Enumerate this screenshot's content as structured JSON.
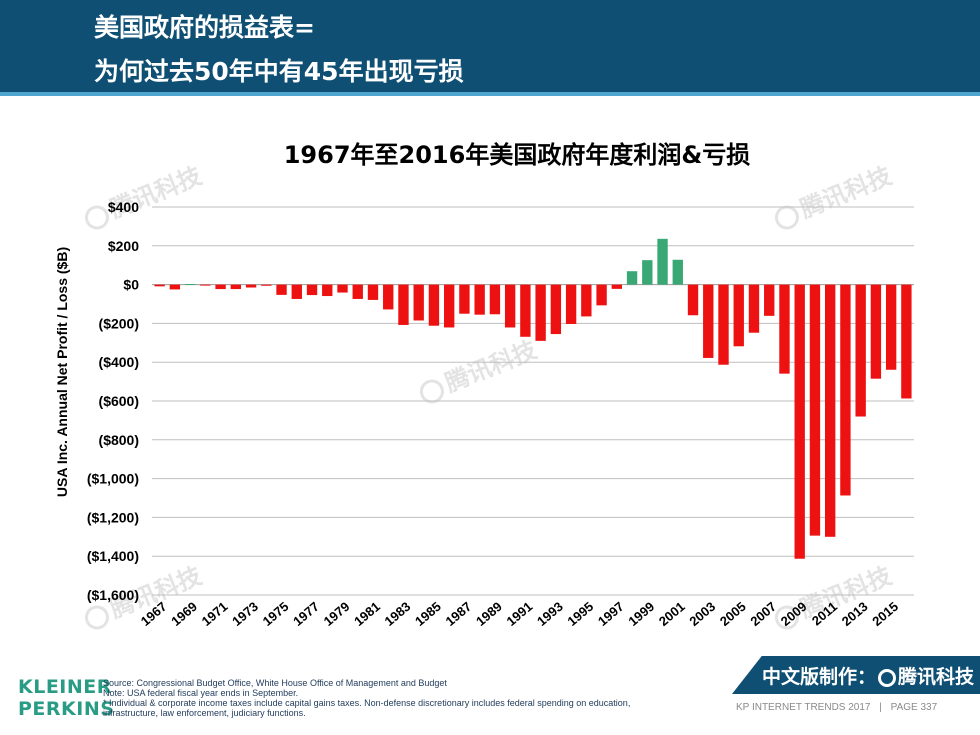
{
  "header": {
    "title_line1": "美国政府的损益表=",
    "title_line2": "为何过去50年中有45年出现亏损"
  },
  "colors": {
    "header_bg": "#0f4f74",
    "positive": "#3aa874",
    "negative": "#ee1111",
    "grid": "#bfbfbf"
  },
  "chart_data": {
    "type": "bar",
    "title": "1967年至2016年美国政府年度利润&亏损",
    "ylabel": "USA Inc. Annual Net Profit / Loss ($B)",
    "xlabel": "",
    "ylim": [
      -1600,
      400
    ],
    "yticks": [
      400,
      200,
      0,
      -200,
      -400,
      -600,
      -800,
      -1000,
      -1200,
      -1400,
      -1600
    ],
    "ytick_labels": [
      "$400",
      "$200",
      "$0",
      "($200)",
      "($400)",
      "($600)",
      "($800)",
      "($1,000)",
      "($1,200)",
      "($1,400)",
      "($1,600)"
    ],
    "categories": [
      "1967",
      "1968",
      "1969",
      "1970",
      "1971",
      "1972",
      "1973",
      "1974",
      "1975",
      "1976",
      "1977",
      "1978",
      "1979",
      "1980",
      "1981",
      "1982",
      "1983",
      "1984",
      "1985",
      "1986",
      "1987",
      "1988",
      "1989",
      "1990",
      "1991",
      "1992",
      "1993",
      "1994",
      "1995",
      "1996",
      "1997",
      "1998",
      "1999",
      "2000",
      "2001",
      "2002",
      "2003",
      "2004",
      "2005",
      "2006",
      "2007",
      "2008",
      "2009",
      "2010",
      "2011",
      "2012",
      "2013",
      "2014",
      "2015",
      "2016"
    ],
    "xtick_labels": [
      "1967",
      "1969",
      "1971",
      "1973",
      "1975",
      "1977",
      "1979",
      "1981",
      "1983",
      "1985",
      "1987",
      "1989",
      "1991",
      "1993",
      "1995",
      "1997",
      "1999",
      "2001",
      "2003",
      "2005",
      "2007",
      "2009",
      "2011",
      "2013",
      "2015"
    ],
    "values": [
      -9,
      -25,
      3,
      -3,
      -23,
      -23,
      -15,
      -6,
      -53,
      -74,
      -54,
      -59,
      -41,
      -74,
      -79,
      -128,
      -208,
      -185,
      -212,
      -221,
      -150,
      -155,
      -153,
      -221,
      -269,
      -290,
      -255,
      -203,
      -164,
      -107,
      -22,
      69,
      126,
      236,
      128,
      -158,
      -378,
      -413,
      -318,
      -248,
      -161,
      -459,
      -1413,
      -1294,
      -1300,
      -1087,
      -680,
      -485,
      -439,
      -587
    ]
  },
  "watermark": {
    "text": "腾讯科技"
  },
  "footer": {
    "logo_line1": "KLEINER",
    "logo_line2": "PERKINS",
    "source": "Source: Congressional Budget Office, White House Office of Management and Budget",
    "note1": "Note: USA federal fiscal year ends in September.",
    "note2": "* Individual & corporate income taxes include capital gains taxes. Non-defense discretionary includes federal spending on education,",
    "note3": "infrastructure, law enforcement, judiciary functions.",
    "badge_prefix": "中文版制作：",
    "badge_brand": "腾讯科技",
    "report": "KP INTERNET TRENDS 2017",
    "separator": "|",
    "page": "PAGE 337"
  }
}
